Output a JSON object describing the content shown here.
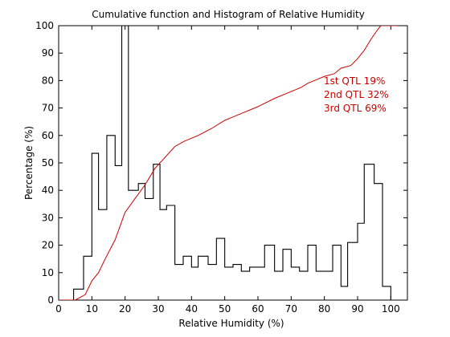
{
  "chart_data": {
    "type": "line",
    "title": "Cumulative function and Histogram of Relative Humidity",
    "xlabel": "Relative Humidity (%)",
    "ylabel": "Percentage (%)",
    "xlim": [
      0,
      105
    ],
    "ylim": [
      0,
      100
    ],
    "xticks": [
      0,
      10,
      20,
      30,
      40,
      50,
      60,
      70,
      80,
      90,
      100
    ],
    "yticks": [
      0,
      10,
      20,
      30,
      40,
      50,
      60,
      70,
      80,
      90,
      100
    ],
    "grid": false,
    "series": [
      {
        "style": "stairs",
        "color": "#000000",
        "edges": [
          0,
          4.5,
          7.5,
          10,
          12,
          14.5,
          17,
          19,
          21,
          24,
          26,
          28.5,
          30.5,
          32.5,
          35,
          37.5,
          40,
          42,
          45,
          47.5,
          50,
          52.5,
          55,
          57.5,
          60,
          62,
          65,
          67.5,
          70,
          72.5,
          75,
          77.5,
          80,
          82.5,
          85,
          87,
          90,
          92,
          95,
          97.5,
          100,
          102,
          105
        ],
        "values": [
          0,
          4,
          16,
          53.5,
          33,
          60,
          49,
          100,
          40,
          42.5,
          37,
          49.5,
          33,
          34.5,
          13,
          16,
          12,
          16,
          13,
          22.5,
          12,
          13,
          10.5,
          12,
          12,
          20,
          10.5,
          18.5,
          12,
          10.5,
          20,
          10.5,
          10.5,
          20,
          5,
          21,
          28,
          49.5,
          42.5,
          5,
          0,
          0
        ]
      },
      {
        "style": "line",
        "color": "#cc0000",
        "x": [
          0,
          5,
          8,
          10,
          12,
          14,
          17,
          20,
          23,
          26,
          29,
          32,
          35,
          38,
          42,
          46,
          50,
          52,
          55,
          60,
          65,
          70,
          73,
          75,
          78,
          80,
          83,
          85,
          88,
          90,
          92,
          94,
          96,
          97,
          100,
          102
        ],
        "y": [
          0,
          0,
          2,
          7,
          10,
          15,
          22,
          32,
          37,
          42,
          48,
          52,
          56,
          58,
          60,
          62.5,
          65.5,
          66.5,
          68,
          70.5,
          73.5,
          76,
          77.5,
          79,
          80.5,
          81.5,
          82.5,
          84.5,
          85.5,
          88,
          91,
          95,
          98.5,
          100,
          100,
          100
        ]
      }
    ],
    "annotations": [
      "1st QTL  19%",
      "2nd QTL  32%",
      "3rd QTL  69%"
    ]
  },
  "colors": {
    "axis": "#000000",
    "histogram": "#000000",
    "cumulative": "#cc0000"
  }
}
